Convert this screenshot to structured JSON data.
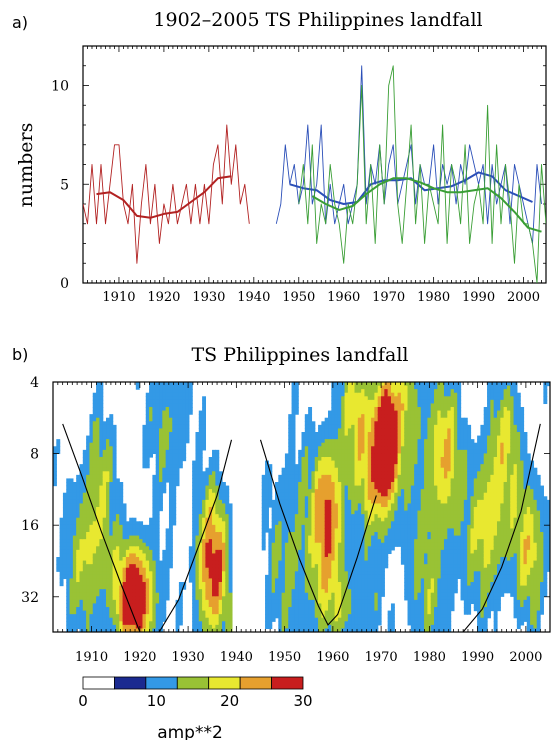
{
  "panel_a_label": "a)",
  "panel_b_label": "b)",
  "colorbar": {
    "label": "amp**2",
    "ticks": [
      "0",
      "10",
      "20",
      "30"
    ],
    "colors": [
      "#ffffff",
      "#1a2a90",
      "#3399e6",
      "#99c235",
      "#e8e830",
      "#e6a02e",
      "#c81e1e"
    ]
  },
  "chart_data": [
    {
      "type": "line",
      "title": "1902–2005 TS Philippines landfall",
      "xlabel": "",
      "ylabel": "numbers",
      "xlim": [
        1902,
        2005
      ],
      "ylim": [
        0,
        12
      ],
      "xticks": [
        1910,
        1920,
        1930,
        1940,
        1950,
        1960,
        1970,
        1980,
        1990,
        2000
      ],
      "yticks": [
        0,
        5,
        10
      ],
      "grid": false,
      "series": [
        {
          "color": "#b22222",
          "style": "thin",
          "x": [
            1902,
            1903,
            1904,
            1905,
            1906,
            1907,
            1908,
            1909,
            1910,
            1911,
            1912,
            1913,
            1914,
            1915,
            1916,
            1917,
            1918,
            1919,
            1920,
            1921,
            1922,
            1923,
            1924,
            1925,
            1926,
            1927,
            1928,
            1929,
            1930,
            1931,
            1932,
            1933,
            1934,
            1935,
            1936,
            1937,
            1938,
            1939
          ],
          "values": [
            4,
            3,
            6,
            3,
            6,
            3,
            5,
            7,
            7,
            4,
            3,
            5,
            1,
            4,
            6,
            3,
            5,
            2,
            4,
            3,
            5,
            3,
            4,
            5,
            3,
            5,
            3,
            5,
            3,
            6,
            7,
            4,
            8,
            5,
            7,
            4,
            5,
            3
          ]
        },
        {
          "color": "#b22222",
          "style": "smooth",
          "x": [
            1905,
            1908,
            1911,
            1914,
            1917,
            1920,
            1923,
            1926,
            1929,
            1932,
            1935
          ],
          "values": [
            4.5,
            4.6,
            4.2,
            3.4,
            3.3,
            3.5,
            3.6,
            4.1,
            4.6,
            5.3,
            5.4
          ]
        },
        {
          "color": "#2b4fb8",
          "style": "thin",
          "x": [
            1945,
            1946,
            1947,
            1948,
            1949,
            1950,
            1951,
            1952,
            1953,
            1954,
            1955,
            1956,
            1957,
            1958,
            1959,
            1960,
            1961,
            1962,
            1963,
            1964,
            1965,
            1966,
            1967,
            1968,
            1969,
            1970,
            1971,
            1972,
            1973,
            1974,
            1975,
            1976,
            1977,
            1978,
            1979,
            1980,
            1981,
            1982,
            1983,
            1984,
            1985,
            1986,
            1987,
            1988,
            1989,
            1990,
            1991,
            1992,
            1993,
            1994,
            1995,
            1996,
            1997,
            1998,
            1999,
            2000,
            2001,
            2002,
            2003,
            2004
          ],
          "values": [
            3,
            4,
            7,
            5,
            6,
            4,
            5,
            8,
            4,
            5,
            8,
            3,
            5,
            3,
            4,
            5,
            3,
            4,
            5,
            11,
            4,
            6,
            5,
            7,
            4,
            6,
            7,
            4,
            5,
            6,
            7,
            4,
            6,
            5,
            5,
            7,
            4,
            6,
            5,
            6,
            4,
            6,
            5,
            7,
            6,
            5,
            6,
            3,
            6,
            4,
            5,
            6,
            3,
            6,
            5,
            4,
            3,
            2,
            6,
            4
          ]
        },
        {
          "color": "#2b4fb8",
          "style": "smooth",
          "x": [
            1948,
            1951,
            1954,
            1957,
            1960,
            1963,
            1966,
            1969,
            1972,
            1975,
            1978,
            1981,
            1984,
            1987,
            1990,
            1993,
            1996,
            1999,
            2002
          ],
          "values": [
            5.0,
            4.8,
            4.7,
            4.2,
            4.0,
            4.1,
            5.0,
            5.2,
            5.2,
            5.3,
            4.7,
            4.8,
            4.9,
            5.2,
            5.6,
            5.4,
            4.7,
            4.4,
            4.1
          ]
        },
        {
          "color": "#3a9e35",
          "style": "thin",
          "x": [
            1950,
            1951,
            1952,
            1953,
            1954,
            1955,
            1956,
            1957,
            1958,
            1959,
            1960,
            1961,
            1962,
            1963,
            1964,
            1965,
            1966,
            1967,
            1968,
            1969,
            1970,
            1971,
            1972,
            1973,
            1974,
            1975,
            1976,
            1977,
            1978,
            1979,
            1980,
            1981,
            1982,
            1983,
            1984,
            1985,
            1986,
            1987,
            1988,
            1989,
            1990,
            1991,
            1992,
            1993,
            1994,
            1995,
            1996,
            1997,
            1998,
            1999,
            2000,
            2001,
            2002,
            2003,
            2004,
            2005
          ],
          "values": [
            4,
            6,
            3,
            7,
            2,
            4,
            3,
            6,
            4,
            3,
            1,
            4,
            3,
            5,
            10,
            3,
            6,
            2,
            7,
            4,
            10,
            11,
            4,
            2,
            5,
            8,
            3,
            6,
            2,
            5,
            4,
            3,
            8,
            2,
            6,
            5,
            3,
            7,
            2,
            4,
            5,
            3,
            9,
            2,
            7,
            3,
            6,
            4,
            1,
            5,
            3,
            3,
            2,
            0,
            6,
            3
          ]
        },
        {
          "color": "#3a9e35",
          "style": "smooth",
          "x": [
            1953,
            1956,
            1959,
            1962,
            1965,
            1968,
            1971,
            1974,
            1977,
            1980,
            1983,
            1986,
            1989,
            1992,
            1995,
            1998,
            2001,
            2004
          ],
          "values": [
            4.4,
            4.0,
            3.7,
            3.9,
            4.5,
            5.0,
            5.3,
            5.3,
            5.1,
            4.8,
            4.6,
            4.6,
            4.7,
            4.8,
            4.3,
            3.6,
            2.8,
            2.6
          ]
        }
      ]
    },
    {
      "type": "heatmap",
      "title": "TS Philippines landfall",
      "xlabel": "",
      "ylabel": "",
      "xlim": [
        1902,
        2005
      ],
      "ylim": [
        4,
        45
      ],
      "y_scale": "log",
      "y_inverted": true,
      "xticks": [
        1910,
        1920,
        1930,
        1940,
        1950,
        1960,
        1970,
        1980,
        1990,
        2000
      ],
      "yticks": [
        4,
        8,
        16,
        32
      ],
      "zlim": [
        0,
        30
      ],
      "levels": [
        0,
        5,
        10,
        15,
        20,
        25,
        30
      ],
      "blobs": [
        {
          "year": 1919,
          "period": 32,
          "peak": 32,
          "sx": 3,
          "sy": 0.55
        },
        {
          "year": 1909,
          "period": 22,
          "peak": 14,
          "sx": 3,
          "sy": 0.75
        },
        {
          "year": 1935,
          "period": 24,
          "peak": 26,
          "sx": 2.5,
          "sy": 0.75
        },
        {
          "year": 1959,
          "period": 14,
          "peak": 25,
          "sx": 2.4,
          "sy": 0.7
        },
        {
          "year": 1971,
          "period": 7,
          "peak": 30,
          "sx": 1.6,
          "sy": 0.55
        },
        {
          "year": 1969,
          "period": 10,
          "peak": 17,
          "sx": 3,
          "sy": 0.65
        },
        {
          "year": 1983,
          "period": 8,
          "peak": 18,
          "sx": 2.5,
          "sy": 0.7
        },
        {
          "year": 1992,
          "period": 16,
          "peak": 16,
          "sx": 3,
          "sy": 0.8
        },
        {
          "year": 2001,
          "period": 20,
          "peak": 16,
          "sx": 2.5,
          "sy": 0.7
        },
        {
          "year": 1951,
          "period": 20,
          "peak": 10,
          "sx": 3.5,
          "sy": 1.0
        },
        {
          "year": 1980,
          "period": 28,
          "peak": 10,
          "sx": 4,
          "sy": 0.9
        },
        {
          "year": 1926,
          "period": 6,
          "peak": 10,
          "sx": 3,
          "sy": 0.7
        },
        {
          "year": 1965,
          "period": 5,
          "peak": 14,
          "sx": 2.5,
          "sy": 0.6
        },
        {
          "year": 1975,
          "period": 5,
          "peak": 12,
          "sx": 3,
          "sy": 0.7
        },
        {
          "year": 1912,
          "period": 10,
          "peak": 9,
          "sx": 2.5,
          "sy": 0.7
        },
        {
          "year": 1996,
          "period": 7,
          "peak": 12,
          "sx": 2.5,
          "sy": 0.7
        },
        {
          "year": 1962,
          "period": 35,
          "peak": 10,
          "sx": 5,
          "sy": 0.5
        }
      ],
      "data_gap": [
        1939,
        1945
      ],
      "cone_of_influence": {
        "x": [
          1904,
          1908,
          1912,
          1916,
          1920,
          1924,
          1928,
          1932,
          1936,
          1939
        ],
        "period": [
          6,
          10,
          17,
          28,
          45,
          45,
          33,
          20,
          12,
          7
        ],
        "x2": [
          1945,
          1949,
          1953,
          1957,
          1959,
          1961,
          1965,
          1969
        ],
        "period2": [
          7,
          13,
          22,
          35,
          42,
          38,
          22,
          12
        ],
        "x3": [
          1987,
          1991,
          1995,
          1999,
          2003
        ],
        "period3": [
          45,
          36,
          24,
          14,
          6
        ]
      }
    }
  ]
}
